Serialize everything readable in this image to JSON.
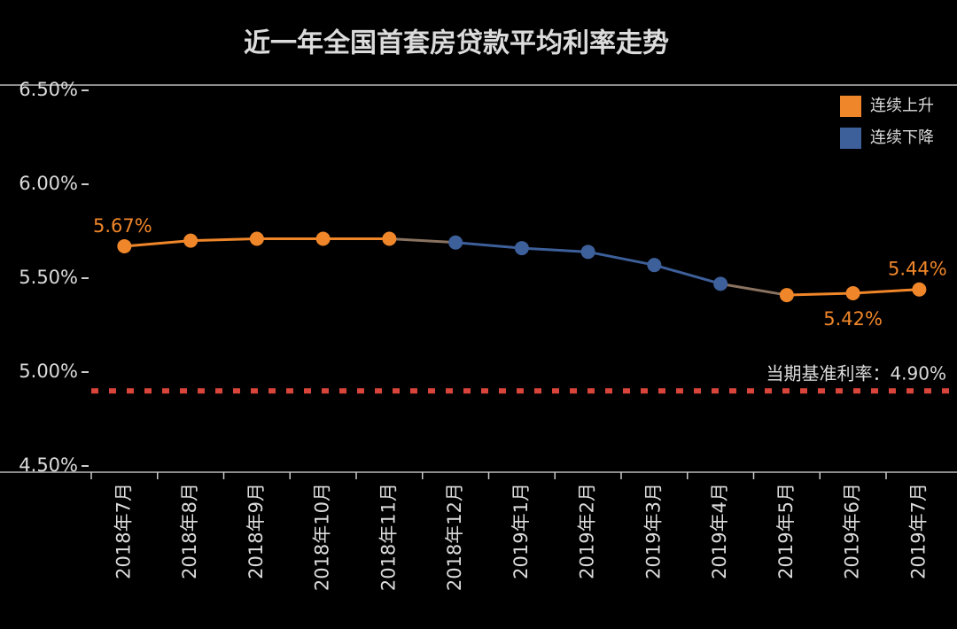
{
  "chart_data": {
    "type": "line",
    "title": "近一年全国首套房贷款平均利率走势",
    "categories": [
      "2018年7月",
      "2018年8月",
      "2018年9月",
      "2018年10月",
      "2018年11月",
      "2018年12月",
      "2019年1月",
      "2019年2月",
      "2019年3月",
      "2019年4月",
      "2019年5月",
      "2019年6月",
      "2019年7月"
    ],
    "series": [
      {
        "name": "连续上升",
        "color": "#f0862a",
        "values": [
          5.67,
          5.7,
          5.71,
          5.71,
          5.71,
          null,
          null,
          null,
          null,
          null,
          5.41,
          5.42,
          5.44
        ],
        "value_labels": [
          "5.67%",
          null,
          null,
          null,
          null,
          null,
          null,
          null,
          null,
          null,
          null,
          "5.42%",
          "5.44%"
        ]
      },
      {
        "name": "连续下降",
        "color": "#3d5f9a",
        "values": [
          null,
          null,
          null,
          null,
          null,
          5.69,
          5.66,
          5.64,
          5.57,
          5.47,
          null,
          null,
          null
        ]
      }
    ],
    "ylim": [
      4.5,
      6.5
    ],
    "yticks": [
      {
        "value": 4.5,
        "label": "4.50%"
      },
      {
        "value": 5,
        "label": "5.00%"
      },
      {
        "value": 5.5,
        "label": "5.50%"
      },
      {
        "value": 6,
        "label": "6.00%"
      },
      {
        "value": 6.5,
        "label": "6.50%"
      }
    ],
    "reference": {
      "value": 4.9,
      "label": "当期基准利率：4.90%",
      "color": "#d9453a"
    },
    "legend": "top-right"
  }
}
